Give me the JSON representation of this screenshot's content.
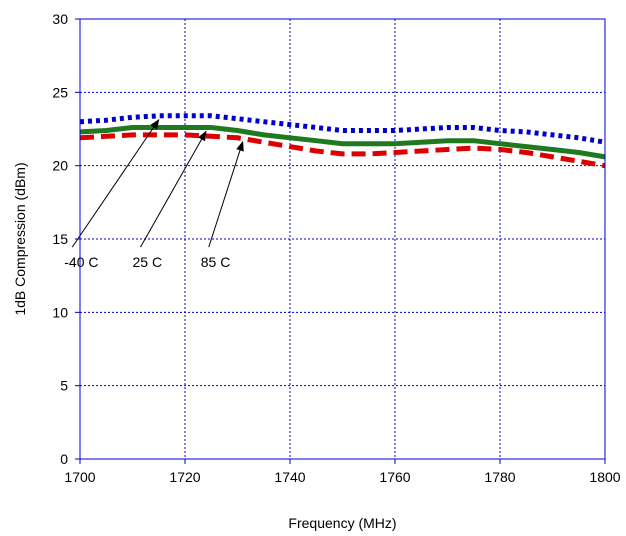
{
  "chart_data": {
    "type": "line",
    "title": "",
    "xlabel": "Frequency (MHz)",
    "ylabel": "1dB Compression (dBm)",
    "xlim": [
      1700,
      1800
    ],
    "ylim": [
      0,
      30
    ],
    "x_ticks": [
      1700,
      1720,
      1740,
      1760,
      1780,
      1800
    ],
    "y_ticks": [
      0,
      5,
      10,
      15,
      20,
      25,
      30
    ],
    "grid": true,
    "series": [
      {
        "color": "#0000cc",
        "dash": "dotted",
        "points": [
          [
            1700,
            23.0
          ],
          [
            1705,
            23.1
          ],
          [
            1710,
            23.3
          ],
          [
            1715,
            23.4
          ],
          [
            1720,
            23.4
          ],
          [
            1725,
            23.4
          ],
          [
            1730,
            23.2
          ],
          [
            1735,
            23.0
          ],
          [
            1740,
            22.8
          ],
          [
            1745,
            22.6
          ],
          [
            1750,
            22.4
          ],
          [
            1755,
            22.4
          ],
          [
            1760,
            22.4
          ],
          [
            1765,
            22.5
          ],
          [
            1770,
            22.6
          ],
          [
            1775,
            22.6
          ],
          [
            1780,
            22.4
          ],
          [
            1785,
            22.3
          ],
          [
            1790,
            22.1
          ],
          [
            1795,
            21.9
          ],
          [
            1800,
            21.6
          ]
        ]
      },
      {
        "color": "#1f7a1f",
        "dash": "solid",
        "points": [
          [
            1700,
            22.3
          ],
          [
            1705,
            22.4
          ],
          [
            1710,
            22.6
          ],
          [
            1715,
            22.6
          ],
          [
            1720,
            22.6
          ],
          [
            1725,
            22.6
          ],
          [
            1730,
            22.4
          ],
          [
            1735,
            22.1
          ],
          [
            1740,
            21.9
          ],
          [
            1745,
            21.7
          ],
          [
            1750,
            21.5
          ],
          [
            1755,
            21.5
          ],
          [
            1760,
            21.5
          ],
          [
            1765,
            21.6
          ],
          [
            1770,
            21.7
          ],
          [
            1775,
            21.7
          ],
          [
            1780,
            21.5
          ],
          [
            1785,
            21.3
          ],
          [
            1790,
            21.1
          ],
          [
            1795,
            20.9
          ],
          [
            1800,
            20.6
          ]
        ]
      },
      {
        "color": "#dd0000",
        "dash": "dashed",
        "points": [
          [
            1700,
            21.9
          ],
          [
            1705,
            22.0
          ],
          [
            1710,
            22.1
          ],
          [
            1715,
            22.1
          ],
          [
            1720,
            22.1
          ],
          [
            1725,
            22.0
          ],
          [
            1730,
            21.9
          ],
          [
            1735,
            21.6
          ],
          [
            1740,
            21.3
          ],
          [
            1745,
            21.0
          ],
          [
            1750,
            20.8
          ],
          [
            1755,
            20.8
          ],
          [
            1760,
            20.9
          ],
          [
            1765,
            21.0
          ],
          [
            1770,
            21.1
          ],
          [
            1775,
            21.2
          ],
          [
            1780,
            21.1
          ],
          [
            1785,
            20.9
          ],
          [
            1790,
            20.6
          ],
          [
            1795,
            20.3
          ],
          [
            1800,
            20.0
          ]
        ]
      }
    ],
    "annotations": [
      {
        "text": "-40 C",
        "target": [
          1715,
          23.4
        ],
        "anchor": [
          1697,
          13.9
        ]
      },
      {
        "text": "25 C",
        "target": [
          1724,
          22.6
        ],
        "anchor": [
          1710,
          13.9
        ]
      },
      {
        "text": "85 C",
        "target": [
          1731,
          21.9
        ],
        "anchor": [
          1723,
          13.9
        ]
      }
    ]
  }
}
